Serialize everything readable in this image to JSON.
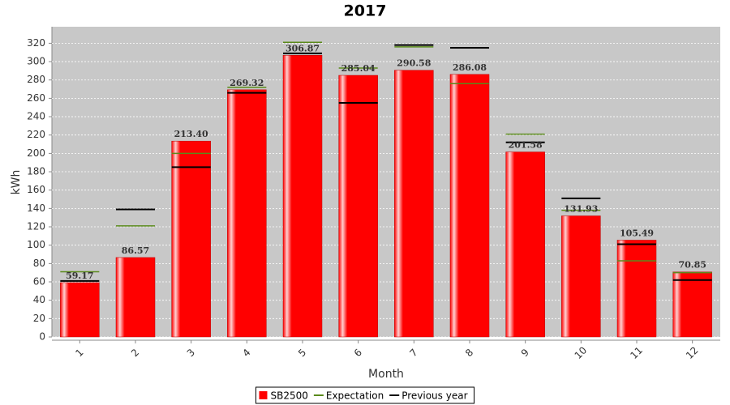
{
  "chart_data": {
    "type": "bar",
    "title": "2017",
    "x_label": "Month",
    "y_label": "kWh",
    "categories": [
      "1",
      "2",
      "3",
      "4",
      "5",
      "6",
      "7",
      "8",
      "9",
      "10",
      "11",
      "12"
    ],
    "series": [
      {
        "name": "SB2500",
        "color": "#ff0000",
        "style": "bar",
        "values": [
          59.17,
          86.57,
          213.4,
          269.32,
          306.87,
          285.04,
          290.58,
          286.08,
          201.58,
          131.93,
          105.49,
          70.85
        ],
        "value_labels": [
          "59.17",
          "86.57",
          "213.40",
          "269.32",
          "306.87",
          "285.04",
          "290.58",
          "286.08",
          "201.58",
          "131.93",
          "105.49",
          "70.85"
        ]
      },
      {
        "name": "Expectation",
        "color": "#5a8a1a",
        "style": "tick",
        "values": [
          71,
          121,
          200,
          272,
          321,
          293,
          316,
          276,
          221,
          138,
          83,
          70
        ]
      },
      {
        "name": "Previous year",
        "color": "#000000",
        "style": "tick",
        "values": [
          61,
          139,
          185,
          266,
          309,
          255,
          318,
          315,
          212,
          151,
          101,
          62
        ]
      }
    ],
    "ylim": [
      0,
      338
    ],
    "yticks": [
      0,
      20,
      40,
      60,
      80,
      100,
      120,
      140,
      160,
      180,
      200,
      220,
      240,
      260,
      280,
      300,
      320
    ],
    "grid": true,
    "legend": "bottom"
  }
}
